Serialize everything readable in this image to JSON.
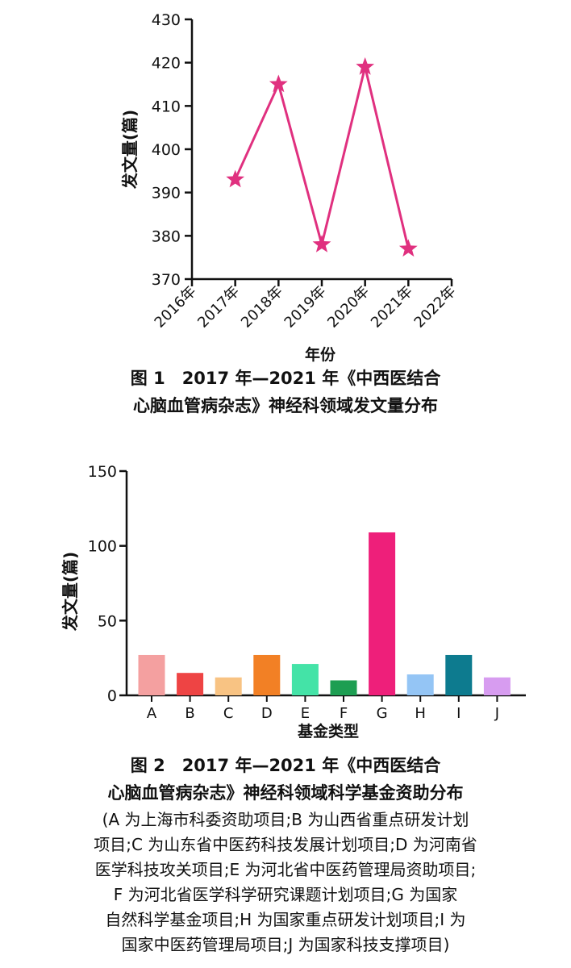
{
  "chart_data": [
    {
      "type": "line",
      "x": [
        "2017年",
        "2018年",
        "2019年",
        "2020年",
        "2021年"
      ],
      "x_ticks": [
        "2016年",
        "2017年",
        "2018年",
        "2019年",
        "2020年",
        "2021年",
        "2022年"
      ],
      "series": [
        {
          "values": [
            393,
            415,
            378,
            419,
            377
          ]
        }
      ],
      "xlabel": "年份",
      "ylabel": "发文量(篇)",
      "ylim": [
        370,
        430
      ],
      "y_ticks": [
        370,
        380,
        390,
        400,
        410,
        420,
        430
      ],
      "marker": "star",
      "color": "#e0307f",
      "grid": false
    },
    {
      "type": "bar",
      "categories": [
        "A",
        "B",
        "C",
        "D",
        "E",
        "F",
        "G",
        "H",
        "I",
        "J"
      ],
      "values": [
        27,
        15,
        12,
        27,
        21,
        10,
        109,
        14,
        27,
        12
      ],
      "colors": [
        "#f4a0a0",
        "#ee4444",
        "#f8c383",
        "#f28025",
        "#44e3a7",
        "#1d9e52",
        "#ee1f7a",
        "#94c5f5",
        "#0d7b8f",
        "#d79cf0"
      ],
      "xlabel": "基金类型",
      "ylabel": "发文量(篇)",
      "ylim": [
        0,
        150
      ],
      "y_ticks": [
        0,
        50,
        100,
        150
      ],
      "grid": false
    }
  ],
  "captions": {
    "fig1_line1": "图 1　2017 年—2021 年《中西医结合",
    "fig1_line2": "心脑血管病杂志》神经科领域发文量分布",
    "fig2_line1": "图 2　2017 年—2021 年《中西医结合",
    "fig2_line2": "心脑血管病杂志》神经科领域科学基金资助分布",
    "fig2_note": [
      "(A 为上海市科委资助项目;B 为山西省重点研发计划",
      "项目;C 为山东省中医药科技发展计划项目;D 为河南省",
      "医学科技攻关项目;E 为河北省中医药管理局资助项目;",
      "F 为河北省医学科学研究课题计划项目;G 为国家",
      "自然科学基金项目;H 为国家重点研发计划项目;I 为",
      "国家中医药管理局项目;J 为国家科技支撑项目)"
    ]
  }
}
